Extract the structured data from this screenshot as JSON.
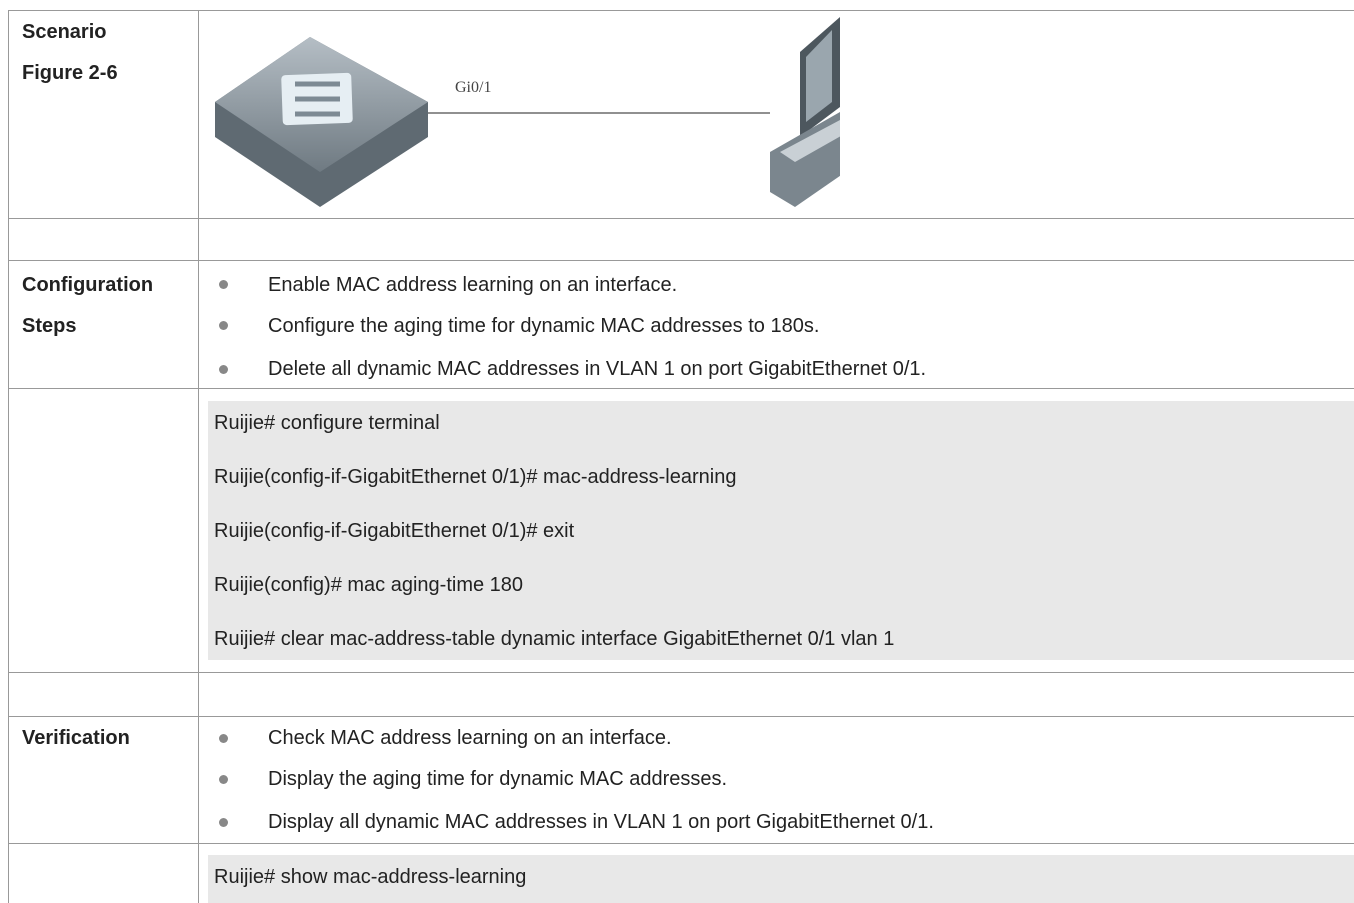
{
  "scenario": {
    "labels": [
      "Scenario",
      "Figure 2-6"
    ],
    "port_label": "Gi0/1"
  },
  "configuration": {
    "labels": [
      "Configuration",
      "Steps"
    ],
    "steps": [
      "Enable MAC address learning on an interface.",
      "Configure the aging time for dynamic MAC addresses to 180s.",
      "Delete all dynamic MAC addresses in VLAN 1 on port GigabitEthernet 0/1."
    ]
  },
  "config_commands": [
    "Ruijie# configure terminal",
    "Ruijie(config-if-GigabitEthernet 0/1)# mac-address-learning",
    "Ruijie(config-if-GigabitEthernet 0/1)# exit",
    "Ruijie(config)# mac aging-time 180",
    "Ruijie# clear mac-address-table dynamic interface GigabitEthernet 0/1 vlan 1"
  ],
  "verification": {
    "label": "Verification",
    "steps": [
      "Check MAC address learning on an interface.",
      "Display the aging time for dynamic MAC addresses.",
      "Display all dynamic MAC addresses in VLAN 1 on port GigabitEthernet 0/1."
    ]
  },
  "verification_commands": [
    "Ruijie# show mac-address-learning"
  ]
}
